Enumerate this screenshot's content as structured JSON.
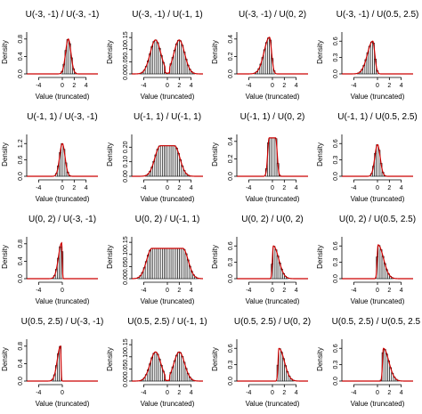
{
  "colors": {
    "bars": "#000000",
    "bar_fill": "#ffffff",
    "curve": "#cc0000",
    "axis": "#000000"
  },
  "chart_data": [
    {
      "type": "bar",
      "title": "U(-3, -1) / U(-3, -1)",
      "xlabel": "Value (truncated)",
      "ylabel": "Density",
      "xlim": [
        -6,
        6
      ],
      "ylim": [
        0,
        1.0
      ],
      "xticks": [
        -4,
        0,
        2,
        4
      ],
      "yticks": [
        "0.0",
        "0.4",
        "0.8"
      ],
      "shape": "peak",
      "center": 1.0,
      "peak": 0.8
    },
    {
      "type": "bar",
      "title": "U(-3, -1) / U(-1, 1)",
      "xlabel": "Value (truncated)",
      "ylabel": "Density",
      "xlim": [
        -6,
        6
      ],
      "ylim": [
        0,
        0.18
      ],
      "xticks": [
        -4,
        0,
        2,
        4
      ],
      "yticks": [
        "0.00",
        "0.05",
        "0.10",
        "0.15"
      ],
      "shape": "bimodal",
      "peak": 0.14
    },
    {
      "type": "bar",
      "title": "U(-3, -1) / U(0, 2)",
      "xlabel": "Value (truncated)",
      "ylabel": "Density",
      "xlim": [
        -6,
        6
      ],
      "ylim": [
        0,
        0.5
      ],
      "xticks": [
        -4,
        0,
        2,
        4
      ],
      "yticks": [
        "0.0",
        "0.2",
        "0.4"
      ],
      "shape": "left_skew",
      "center": -0.5,
      "peak": 0.42
    },
    {
      "type": "bar",
      "title": "U(-3, -1) / U(0.5, 2.5)",
      "xlabel": "Value (truncated)",
      "ylabel": "Density",
      "xlim": [
        -6,
        6
      ],
      "ylim": [
        0,
        0.8
      ],
      "xticks": [
        -4,
        0,
        2,
        4
      ],
      "yticks": [
        "0.0",
        "0.3",
        "0.6"
      ],
      "shape": "left_skew",
      "center": -0.8,
      "peak": 0.6
    },
    {
      "type": "bar",
      "title": "U(-1, 1) / U(-3, -1)",
      "xlabel": "Value (truncated)",
      "ylabel": "Density",
      "xlim": [
        -6,
        6
      ],
      "ylim": [
        0,
        1.6
      ],
      "xticks": [
        -4,
        0,
        2,
        4
      ],
      "yticks": [
        "0.0",
        "0.6",
        "1.2"
      ],
      "shape": "peak",
      "center": 0.0,
      "peak": 1.2
    },
    {
      "type": "bar",
      "title": "U(-1, 1) / U(-1, 1)",
      "xlabel": "Value (truncated)",
      "ylabel": "Density",
      "xlim": [
        -6,
        6
      ],
      "ylim": [
        0,
        0.3
      ],
      "xticks": [
        -4,
        0,
        2,
        4
      ],
      "yticks": [
        "0.00",
        "0.10",
        "0.20"
      ],
      "shape": "plateau",
      "peak": 0.21
    },
    {
      "type": "bar",
      "title": "U(-1, 1) / U(0, 2)",
      "xlabel": "Value (truncated)",
      "ylabel": "Density",
      "xlim": [
        -6,
        6
      ],
      "ylim": [
        0,
        0.5
      ],
      "xticks": [
        -4,
        0,
        2,
        4
      ],
      "yticks": [
        "0.0",
        "0.2",
        "0.4"
      ],
      "shape": "plateau_narrow",
      "peak": 0.44
    },
    {
      "type": "bar",
      "title": "U(-1, 1) / U(0.5, 2.5)",
      "xlabel": "Value (truncated)",
      "ylabel": "Density",
      "xlim": [
        -6,
        6
      ],
      "ylim": [
        0,
        0.8
      ],
      "xticks": [
        -4,
        0,
        2,
        4
      ],
      "yticks": [
        "0.0",
        "0.3",
        "0.6"
      ],
      "shape": "peak",
      "center": 0.0,
      "peak": 0.58
    },
    {
      "type": "bar",
      "title": "U(0, 2) / U(-3, -1)",
      "xlabel": "Value (truncated)",
      "ylabel": "Density",
      "xlim": [
        -6,
        6
      ],
      "ylim": [
        0,
        1.0
      ],
      "xticks": [
        -4,
        0
      ],
      "yticks": [
        "0.0",
        "0.4",
        "0.8"
      ],
      "shape": "right_cliff",
      "center": -0.1,
      "peak": 0.82
    },
    {
      "type": "bar",
      "title": "U(0, 2) / U(-1, 1)",
      "xlabel": "Value (truncated)",
      "ylabel": "Density",
      "xlim": [
        -6,
        6
      ],
      "ylim": [
        0,
        0.18
      ],
      "xticks": [
        -4,
        0,
        2,
        4
      ],
      "yticks": [
        "0.00",
        "0.05",
        "0.10",
        "0.15"
      ],
      "shape": "flat_wide",
      "peak": 0.125
    },
    {
      "type": "bar",
      "title": "U(0, 2) / U(0, 2)",
      "xlabel": "Value (truncated)",
      "ylabel": "Density",
      "xlim": [
        -6,
        6
      ],
      "ylim": [
        0,
        0.8
      ],
      "xticks": [
        -4,
        0,
        2,
        4
      ],
      "yticks": [
        "0.0",
        "0.3",
        "0.6"
      ],
      "shape": "right_skew",
      "center": 0.15,
      "peak": 0.6
    },
    {
      "type": "bar",
      "title": "U(0, 2) / U(0.5, 2.5)",
      "xlabel": "Value (truncated)",
      "ylabel": "Density",
      "xlim": [
        -6,
        6
      ],
      "ylim": [
        0,
        0.8
      ],
      "xticks": [
        -4,
        0,
        2,
        4
      ],
      "yticks": [
        "0.0",
        "0.3",
        "0.6"
      ],
      "shape": "right_skew",
      "center": 0.1,
      "peak": 0.62
    },
    {
      "type": "bar",
      "title": "U(0.5, 2.5) / U(-3, -1)",
      "xlabel": "Value (truncated)",
      "ylabel": "Density",
      "xlim": [
        -6,
        6
      ],
      "ylim": [
        0,
        1.0
      ],
      "xticks": [
        -4,
        0
      ],
      "yticks": [
        "0.0",
        "0.4",
        "0.8"
      ],
      "shape": "right_cliff",
      "center": -0.3,
      "peak": 0.8
    },
    {
      "type": "bar",
      "title": "U(0.5, 2.5) / U(-1, 1)",
      "xlabel": "Value (truncated)",
      "ylabel": "Density",
      "xlim": [
        -6,
        6
      ],
      "ylim": [
        0,
        0.18
      ],
      "xticks": [
        -4,
        0,
        2,
        4
      ],
      "yticks": [
        "0.00",
        "0.05",
        "0.10",
        "0.15"
      ],
      "shape": "bimodal",
      "peak": 0.12
    },
    {
      "type": "bar",
      "title": "U(0.5, 2.5) / U(0, 2)",
      "xlabel": "Value (truncated)",
      "ylabel": "Density",
      "xlim": [
        -6,
        6
      ],
      "ylim": [
        0,
        0.8
      ],
      "xticks": [
        -4,
        0,
        2,
        4
      ],
      "yticks": [
        "0.0",
        "0.3",
        "0.6"
      ],
      "shape": "right_skew",
      "center": 1.1,
      "peak": 0.6
    },
    {
      "type": "bar",
      "title": "U(0.5, 2.5) / U(0.5, 2.5)",
      "xlabel": "Value (truncated)",
      "ylabel": "Density",
      "xlim": [
        -6,
        6
      ],
      "ylim": [
        0,
        0.8
      ],
      "xticks": [
        -4,
        0,
        2,
        4
      ],
      "yticks": [
        "0.0",
        "0.3",
        "0.6"
      ],
      "shape": "right_skew",
      "center": 1.0,
      "peak": 0.6
    }
  ]
}
